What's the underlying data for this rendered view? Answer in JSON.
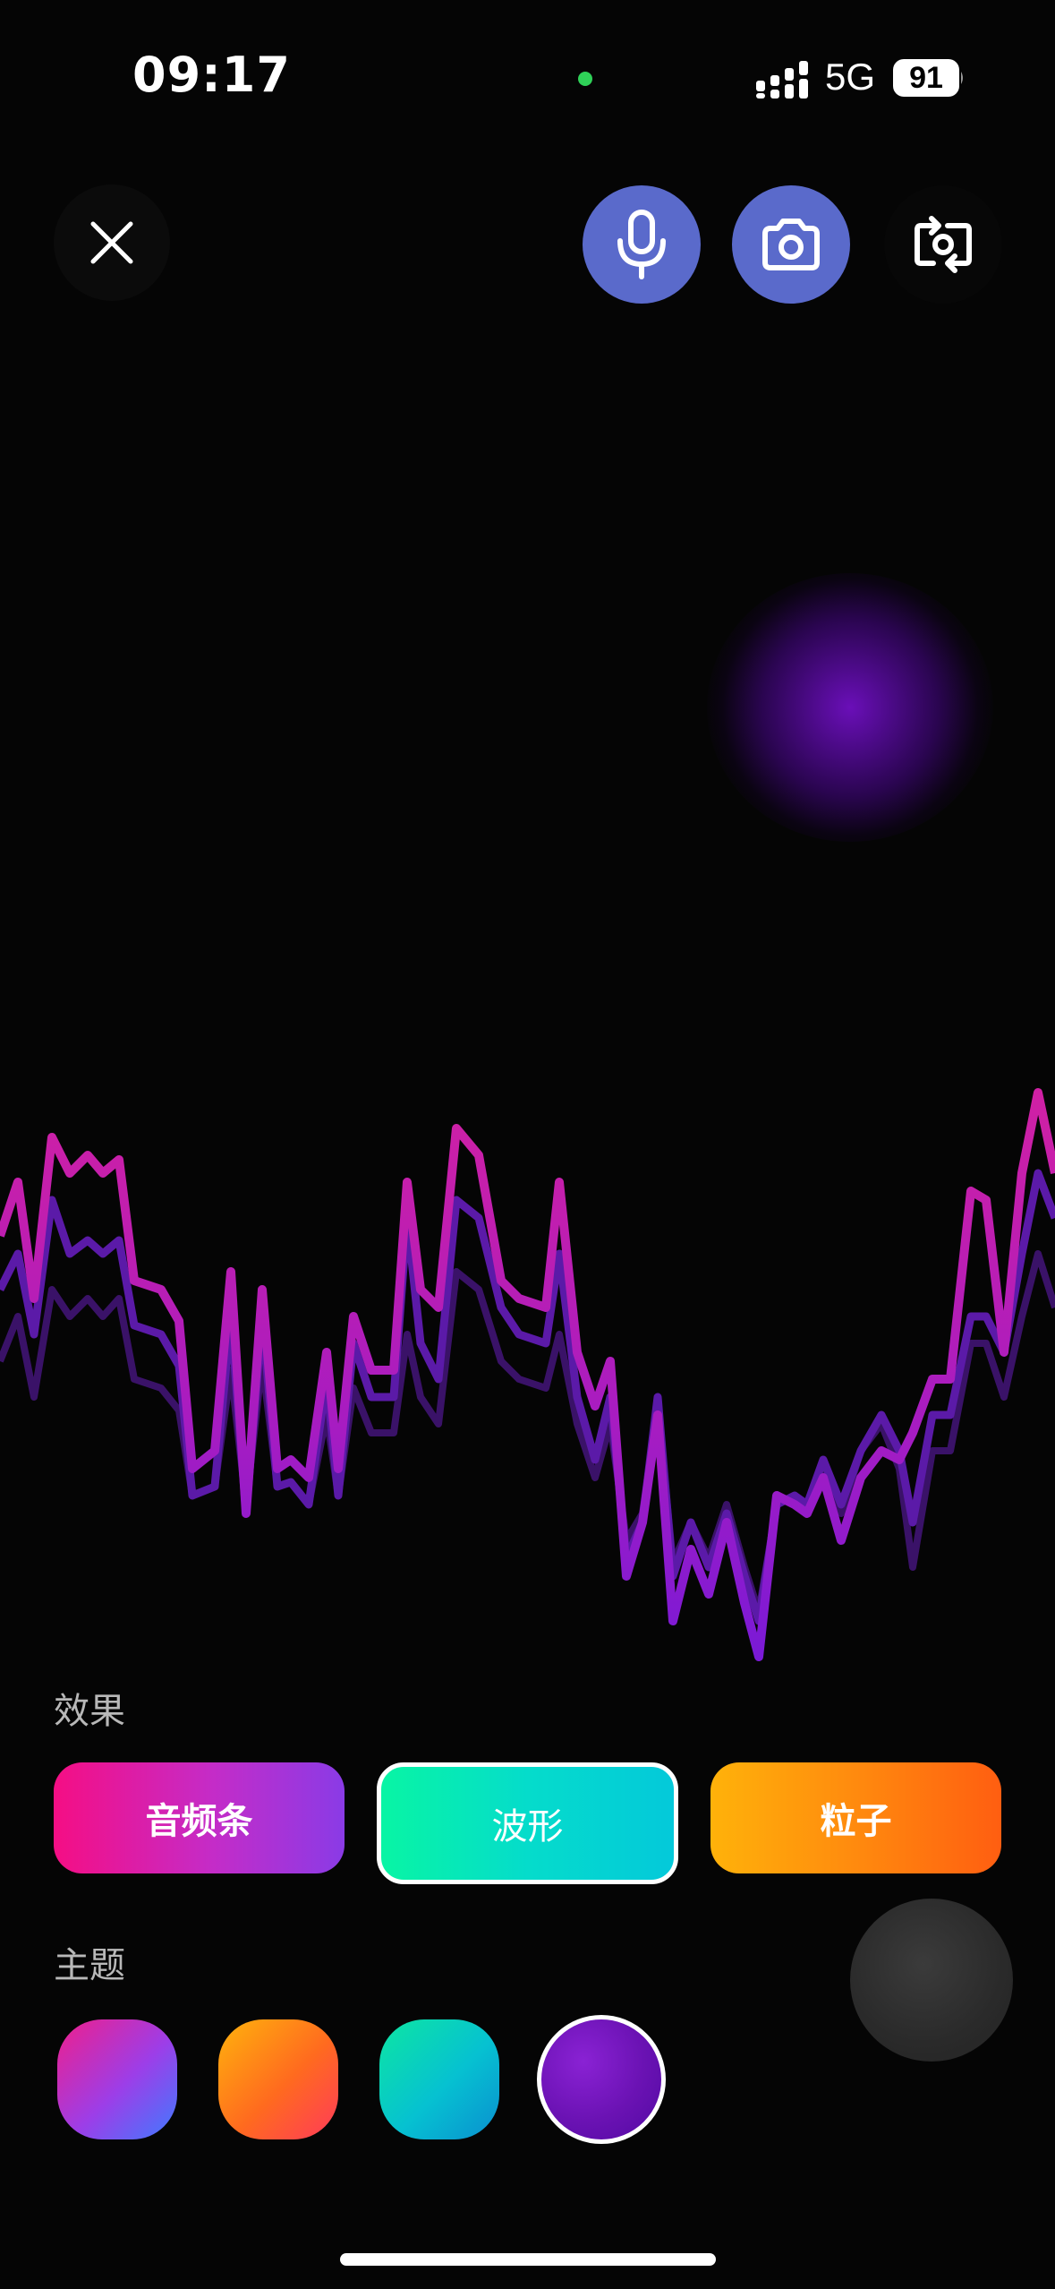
{
  "status_bar": {
    "time": "09:17",
    "network": "5G",
    "battery": "91",
    "signal_icon": "signal-bars-icon",
    "camera_indicator_color": "#2fd158"
  },
  "toolbar": {
    "close_icon": "close-icon",
    "mic_icon": "microphone-icon",
    "camera_icon": "camera-icon",
    "flip_icon": "flip-camera-icon",
    "active_button_color": "#5a6acb"
  },
  "effects": {
    "label": "效果",
    "options": [
      {
        "label": "音频条",
        "selected": false
      },
      {
        "label": "波形",
        "selected": true
      },
      {
        "label": "粒子",
        "selected": false
      }
    ]
  },
  "themes": {
    "label": "主题",
    "selected_index": 3,
    "swatch_names": [
      "pink-blue",
      "orange-red",
      "teal-blue",
      "purple"
    ]
  }
}
